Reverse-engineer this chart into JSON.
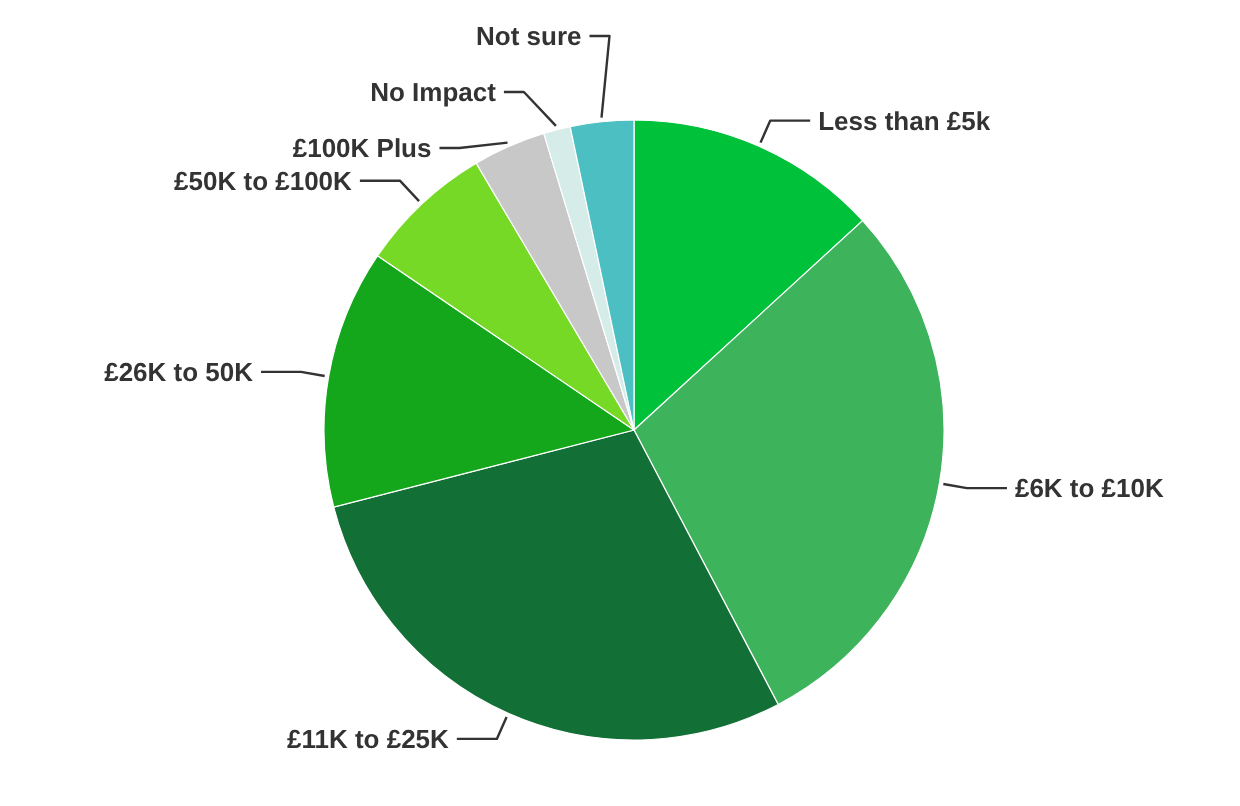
{
  "chart_data": {
    "type": "pie",
    "categories": [
      "Less than £5k",
      "£6K to £10K",
      "£11K to £25K",
      "£26K to 50K",
      "£50K to £100K",
      "£100K Plus",
      "No Impact",
      "Not sure"
    ],
    "values": [
      13.2,
      29.1,
      28.7,
      13.5,
      7.0,
      3.8,
      1.4,
      3.3
    ],
    "colors": [
      "#00c23a",
      "#3db35b",
      "#126f35",
      "#14a71b",
      "#75d925",
      "#c8c8c8",
      "#d5ece8",
      "#4bbfc1"
    ]
  }
}
